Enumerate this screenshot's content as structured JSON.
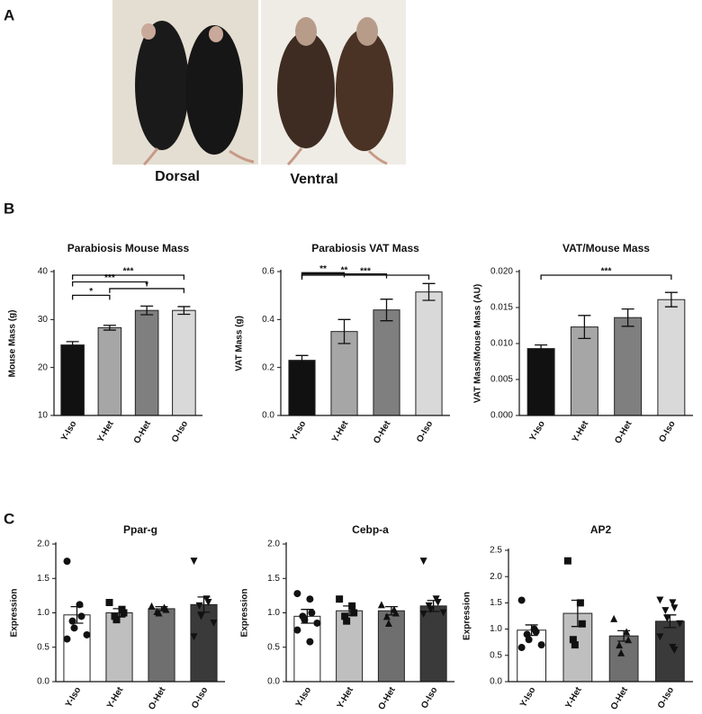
{
  "panels": {
    "a": "A",
    "b": "B",
    "c": "C"
  },
  "photos": {
    "dorsal": "Dorsal",
    "ventral": "Ventral"
  },
  "chart_data": [
    {
      "type": "bar",
      "title": "Parabiosis Mouse Mass",
      "y_label": "Mouse Mass (g)",
      "categories": [
        "Y-Iso",
        "Y-Het",
        "O-Het",
        "O-Iso"
      ],
      "values": [
        24.7,
        28.3,
        31.9,
        31.9
      ],
      "errors": [
        0.7,
        0.5,
        0.9,
        0.8
      ],
      "colors": [
        "#111111",
        "#a6a6a6",
        "#7f7f7f",
        "#d9d9d9"
      ],
      "ylim": [
        10,
        40
      ],
      "yticks": [
        10,
        20,
        30,
        40
      ],
      "significance": [
        {
          "between": [
            0,
            1
          ],
          "label": "*"
        },
        {
          "between": [
            1,
            3
          ],
          "label": "*"
        },
        {
          "between": [
            0,
            2
          ],
          "label": "***"
        },
        {
          "between": [
            0,
            3
          ],
          "label": "***"
        }
      ]
    },
    {
      "type": "bar",
      "title": "Parabiosis VAT Mass",
      "y_label": "VAT Mass (g)",
      "categories": [
        "Y-Iso",
        "Y-Het",
        "O-Het",
        "O-Iso"
      ],
      "values": [
        0.23,
        0.35,
        0.44,
        0.515
      ],
      "errors": [
        0.02,
        0.05,
        0.045,
        0.035
      ],
      "colors": [
        "#111111",
        "#a6a6a6",
        "#7f7f7f",
        "#d9d9d9"
      ],
      "ylim": [
        0,
        0.6
      ],
      "yticks": [
        {
          "value": 0,
          "label": "0.0"
        },
        0.2,
        0.4,
        0.6
      ],
      "significance": [
        {
          "between": [
            0,
            1
          ],
          "label": "**"
        },
        {
          "between": [
            0,
            2
          ],
          "label": "**"
        },
        {
          "between": [
            0,
            3
          ],
          "label": "***"
        }
      ]
    },
    {
      "type": "bar",
      "title": "VAT/Mouse Mass",
      "y_label": "VAT Mass/Mouse Mass (AU)",
      "categories": [
        "Y-Iso",
        "Y-Het",
        "O-Het",
        "O-Iso"
      ],
      "values": [
        0.0093,
        0.0123,
        0.0136,
        0.0161
      ],
      "errors": [
        0.0005,
        0.0016,
        0.0012,
        0.001
      ],
      "colors": [
        "#111111",
        "#a6a6a6",
        "#7f7f7f",
        "#d9d9d9"
      ],
      "ylim": [
        0,
        0.02
      ],
      "yticks": [
        {
          "value": 0,
          "label": "0.000"
        },
        {
          "value": 0.005,
          "label": "0.005"
        },
        {
          "value": 0.01,
          "label": "0.010"
        },
        {
          "value": 0.015,
          "label": "0.015"
        },
        {
          "value": 0.02,
          "label": "0.020"
        }
      ],
      "significance": [
        {
          "between": [
            0,
            3
          ],
          "label": "***"
        }
      ]
    },
    {
      "type": "bar",
      "title": "Ppar-g",
      "y_label": "Expression",
      "categories": [
        "Y-Iso",
        "Y-Het",
        "O-Het",
        "O-Iso"
      ],
      "values": [
        0.97,
        1.0,
        1.06,
        1.12
      ],
      "errors": [
        0.12,
        0.06,
        0.03,
        0.11
      ],
      "colors": [
        "#ffffff",
        "#bfbfbf",
        "#6f6f6f",
        "#3a3a3a"
      ],
      "markers": [
        "circle",
        "square",
        "triangle-up",
        "triangle-down"
      ],
      "points": [
        [
          1.75,
          1.12,
          0.95,
          0.88,
          0.78,
          0.68,
          0.62
        ],
        [
          1.15,
          1.05,
          1.0,
          0.95,
          0.9
        ],
        [
          1.1,
          1.08,
          1.05,
          1.02,
          1.0
        ],
        [
          1.75,
          1.2,
          1.15,
          1.1,
          0.95,
          0.85,
          0.65
        ]
      ],
      "ylim": [
        0,
        2
      ],
      "yticks": [
        {
          "value": 0,
          "label": "0.0"
        },
        0.5,
        {
          "value": 1,
          "label": "1.0"
        },
        1.5,
        {
          "value": 2,
          "label": "2.0"
        }
      ]
    },
    {
      "type": "bar",
      "title": "Cebp-a",
      "y_label": "Expression",
      "categories": [
        "Y-Iso",
        "Y-Het",
        "O-Het",
        "O-Iso"
      ],
      "values": [
        0.95,
        1.03,
        1.03,
        1.1
      ],
      "errors": [
        0.1,
        0.07,
        0.06,
        0.08
      ],
      "colors": [
        "#ffffff",
        "#bfbfbf",
        "#6f6f6f",
        "#3a3a3a"
      ],
      "markers": [
        "circle",
        "square",
        "triangle-up",
        "triangle-down"
      ],
      "points": [
        [
          1.28,
          1.2,
          1.0,
          0.95,
          0.9,
          0.85,
          0.75,
          0.58
        ],
        [
          1.2,
          1.1,
          1.0,
          0.95,
          0.88
        ],
        [
          1.12,
          1.05,
          1.0,
          0.95,
          0.85
        ],
        [
          1.75,
          1.2,
          1.15,
          1.1,
          1.05,
          1.0,
          0.98
        ]
      ],
      "ylim": [
        0,
        2
      ],
      "yticks": [
        {
          "value": 0,
          "label": "0.0"
        },
        0.5,
        {
          "value": 1,
          "label": "1.0"
        },
        1.5,
        {
          "value": 2,
          "label": "2.0"
        }
      ]
    },
    {
      "type": "bar",
      "title": "AP2",
      "y_label": "Expression",
      "categories": [
        "Y-Iso",
        "Y-Het",
        "O-Het",
        "O-Iso"
      ],
      "values": [
        0.98,
        1.3,
        0.87,
        1.15
      ],
      "errors": [
        0.1,
        0.25,
        0.1,
        0.12
      ],
      "colors": [
        "#ffffff",
        "#bfbfbf",
        "#6f6f6f",
        "#3a3a3a"
      ],
      "markers": [
        "circle",
        "square",
        "triangle-up",
        "triangle-down"
      ],
      "points": [
        [
          1.55,
          1.0,
          0.95,
          0.9,
          0.8,
          0.7,
          0.65
        ],
        [
          2.3,
          1.5,
          1.1,
          0.8,
          0.7
        ],
        [
          1.2,
          0.95,
          0.8,
          0.7,
          0.55
        ],
        [
          1.55,
          1.5,
          1.4,
          1.35,
          1.2,
          1.1,
          0.85,
          0.65,
          0.6
        ]
      ],
      "ylim": [
        0,
        2.5
      ],
      "yticks": [
        {
          "value": 0,
          "label": "0.0"
        },
        0.5,
        {
          "value": 1,
          "label": "1.0"
        },
        1.5,
        {
          "value": 2,
          "label": "2.0"
        },
        2.5
      ]
    }
  ]
}
